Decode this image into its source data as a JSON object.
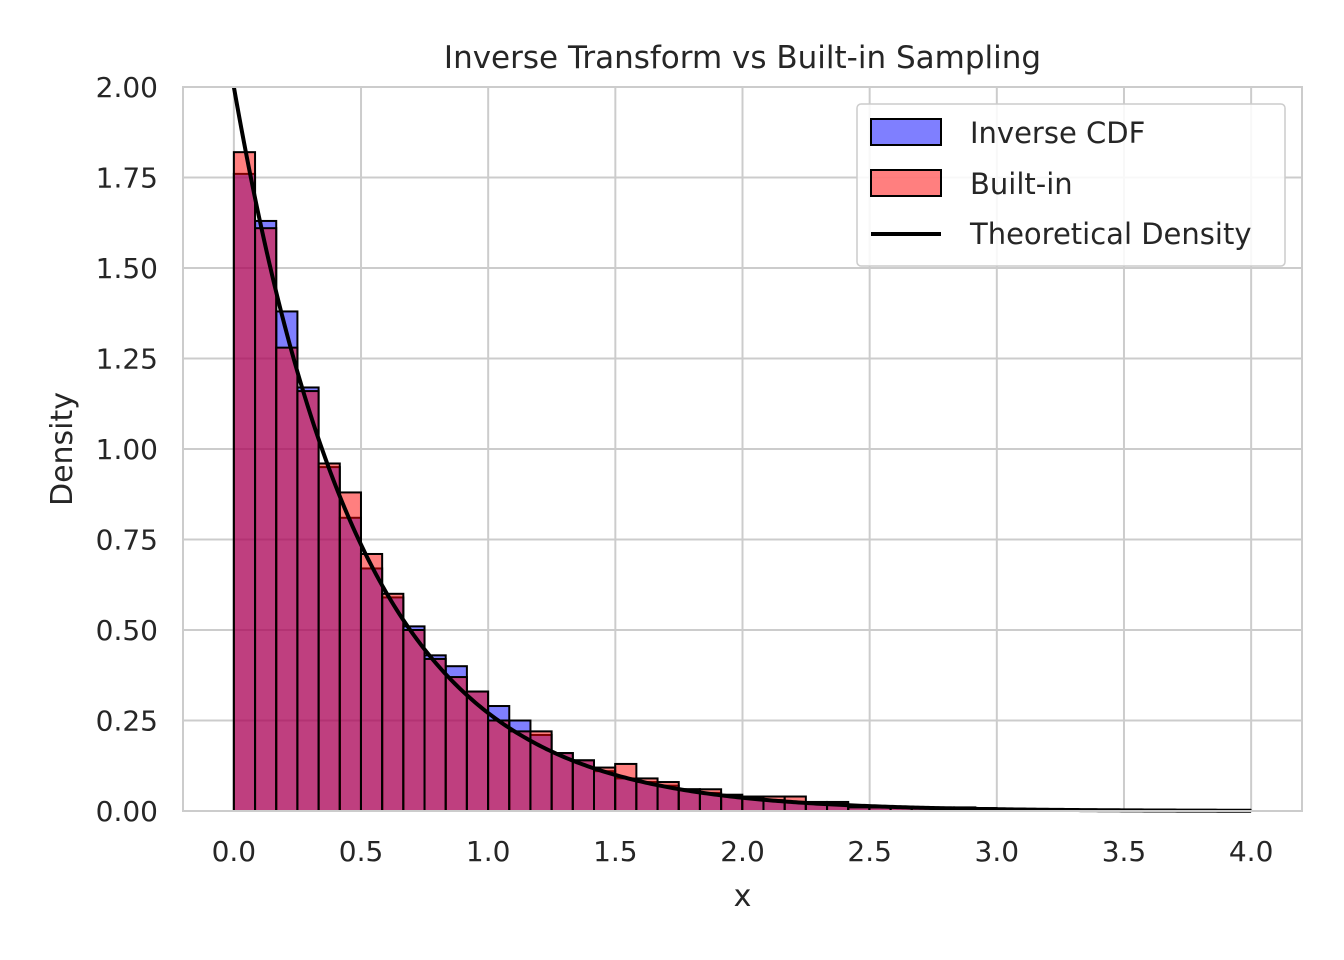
{
  "chart_data": {
    "type": "bar",
    "title": "Inverse Transform vs Built-in Sampling",
    "xlabel": "x",
    "ylabel": "Density",
    "xlim": [
      -0.2,
      4.2
    ],
    "ylim": [
      0,
      2.0
    ],
    "xticks": [
      "0.0",
      "0.5",
      "1.0",
      "1.5",
      "2.0",
      "2.5",
      "3.0",
      "3.5",
      "4.0"
    ],
    "yticks": [
      "0.00",
      "0.25",
      "0.50",
      "0.75",
      "1.00",
      "1.25",
      "1.50",
      "1.75",
      "2.00"
    ],
    "grid": true,
    "legend_position": "top-right",
    "bin_width": 0.0833,
    "bin_start": 0.0,
    "series": [
      {
        "name": "Inverse CDF",
        "kind": "histogram",
        "color": "#0000ff",
        "values": [
          1.76,
          1.63,
          1.38,
          1.17,
          0.95,
          0.81,
          0.67,
          0.59,
          0.51,
          0.43,
          0.4,
          0.33,
          0.29,
          0.25,
          0.21,
          0.16,
          0.14,
          0.11,
          0.09,
          0.08,
          0.07,
          0.06,
          0.05,
          0.04,
          0.035,
          0.03,
          0.025,
          0.02,
          0.02,
          0.015,
          0.01,
          0.01,
          0.01,
          0.008,
          0.008,
          0.005,
          0.005,
          0.004,
          0.004,
          0.003,
          0.003,
          0.002,
          0.002,
          0.002,
          0.002,
          0.001,
          0.001,
          0.001
        ]
      },
      {
        "name": "Built-in",
        "kind": "histogram",
        "color": "#ff0000",
        "values": [
          1.82,
          1.61,
          1.28,
          1.16,
          0.96,
          0.88,
          0.71,
          0.6,
          0.5,
          0.42,
          0.37,
          0.33,
          0.25,
          0.22,
          0.22,
          0.16,
          0.14,
          0.12,
          0.13,
          0.09,
          0.08,
          0.06,
          0.06,
          0.045,
          0.04,
          0.04,
          0.04,
          0.025,
          0.025,
          0.01,
          0.01,
          0.01,
          0.01,
          0.01,
          0.01,
          0.008,
          0.006,
          0.004,
          0.003,
          0.003,
          0.003,
          0.002,
          0.002,
          0.002,
          0.001,
          0.001,
          0.001,
          0.001
        ]
      },
      {
        "name": "Theoretical Density",
        "kind": "line",
        "color": "#000000",
        "function": "2*exp(-2x)",
        "x_range": [
          0,
          4
        ]
      }
    ]
  }
}
